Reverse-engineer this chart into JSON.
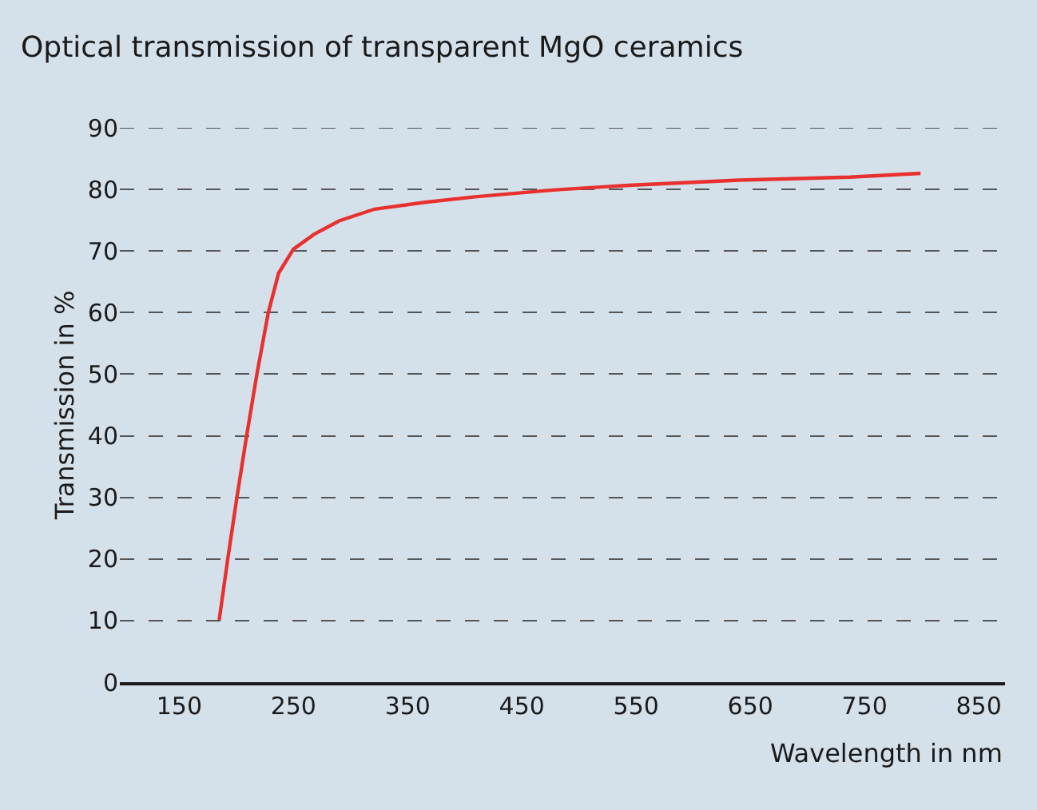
{
  "chart_data": {
    "type": "line",
    "title": "Optical transmission of transparent MgO ceramics",
    "xlabel": "Wavelength in nm",
    "ylabel": "Transmission in %",
    "x": [
      185,
      192.5,
      200.5,
      209,
      218,
      228,
      237,
      250,
      268,
      290,
      321,
      365,
      409,
      471,
      485,
      547,
      640,
      737,
      799
    ],
    "series": [
      {
        "color": "#e8312e",
        "values": [
          10.1,
          20,
          30,
          40,
          50,
          60,
          66.4,
          70.3,
          72.7,
          74.9,
          76.8,
          77.9,
          78.8,
          79.8,
          80.0,
          80.7,
          81.5,
          82.0,
          82.6
        ]
      }
    ],
    "xlim": [
      98,
      873
    ],
    "xticks": [
      150,
      250,
      350,
      450,
      550,
      650,
      750,
      850
    ],
    "ylim": [
      0,
      90
    ],
    "yticks": [
      0,
      10,
      20,
      30,
      40,
      50,
      60,
      70,
      80,
      90
    ],
    "grid": "y",
    "marker": "none",
    "line_style": "solid"
  }
}
